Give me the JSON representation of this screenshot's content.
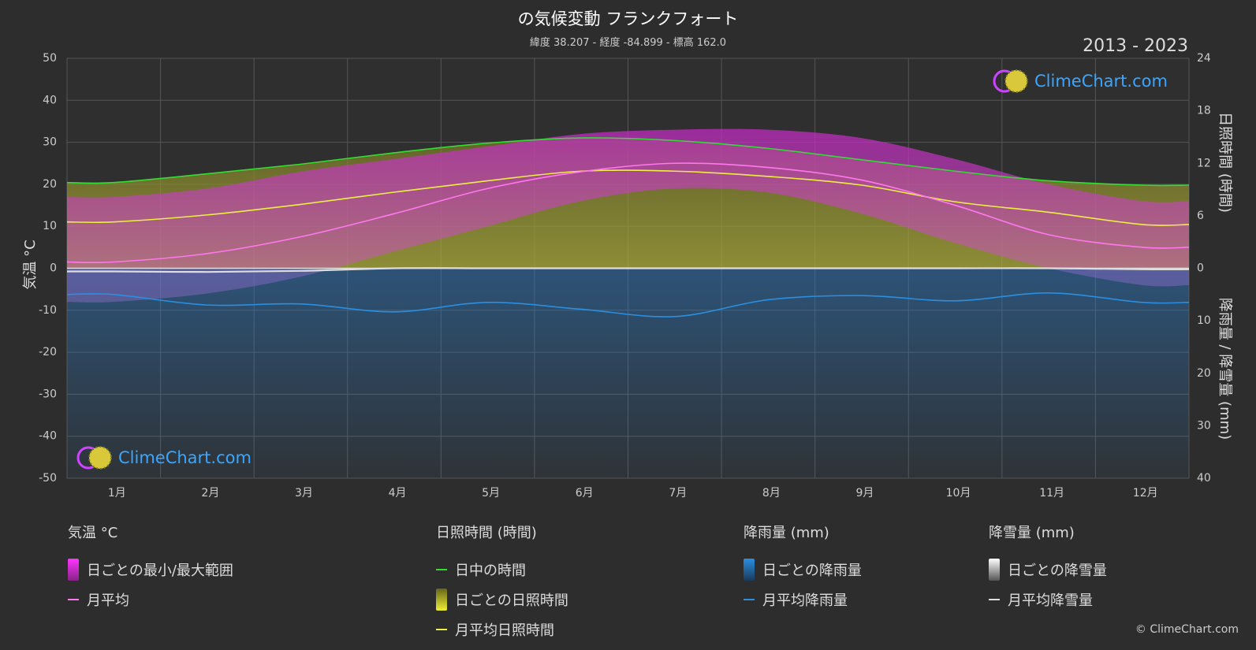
{
  "header": {
    "title": "の気候変動 フランクフォート",
    "subtitle": "緯度 38.207 - 経度 -84.899 - 標高 162.0",
    "years": "2013 - 2023"
  },
  "logo_text": "ClimeChart.com",
  "copyright": "© ClimeChart.com",
  "axes": {
    "left_label": "気温 °C",
    "right_top_label": "日照時間 (時間)",
    "right_bottom_label": "降雨量 / 降雪量 (mm)"
  },
  "legend": {
    "temp": {
      "title": "気温 °C",
      "range": "日ごとの最小/最大範囲",
      "avg": "月平均"
    },
    "sun": {
      "title": "日照時間 (時間)",
      "daylight": "日中の時間",
      "daily": "日ごとの日照時間",
      "avg": "月平均日照時間"
    },
    "rain": {
      "title": "降雨量 (mm)",
      "daily": "日ごとの降雨量",
      "avg": "月平均降雨量"
    },
    "snow": {
      "title": "降雪量 (mm)",
      "daily": "日ごとの降雪量",
      "avg": "月平均降雪量"
    }
  },
  "colors": {
    "background": "#2d2d2d",
    "daylight": "#33dd33",
    "sunshine_avg": "#eeee44",
    "temp_avg": "#ff77ee",
    "temp_range": "#dd33dd",
    "rain": "#2a8fe0",
    "snow": "#dddddd"
  },
  "chart_data": {
    "type": "line",
    "categories": [
      "1月",
      "2月",
      "3月",
      "4月",
      "5月",
      "6月",
      "7月",
      "8月",
      "9月",
      "10月",
      "11月",
      "12月"
    ],
    "y_left": {
      "ticks": [
        50,
        40,
        30,
        20,
        10,
        0,
        -10,
        -20,
        -30,
        -40,
        -50
      ],
      "range": [
        -50,
        50
      ]
    },
    "y_right_top": {
      "ticks": [
        24,
        18,
        12,
        6,
        0
      ],
      "range": [
        0,
        24
      ]
    },
    "y_right_bottom": {
      "ticks": [
        10,
        20,
        30,
        40
      ],
      "range": [
        0,
        40
      ]
    },
    "series": [
      {
        "name": "日中の時間",
        "unit": "hours",
        "values": [
          9.8,
          10.8,
          11.9,
          13.2,
          14.3,
          14.9,
          14.6,
          13.7,
          12.4,
          11.1,
          10.0,
          9.5
        ]
      },
      {
        "name": "月平均日照時間",
        "unit": "hours",
        "values": [
          5.3,
          6.1,
          7.3,
          8.7,
          10.0,
          11.1,
          11.1,
          10.5,
          9.5,
          7.6,
          6.4,
          5.0
        ]
      },
      {
        "name": "月平均",
        "unit": "°C",
        "values": [
          1.5,
          3.5,
          7.5,
          13.0,
          19.0,
          23.0,
          25.0,
          24.0,
          21.0,
          15.0,
          8.0,
          5.0
        ]
      },
      {
        "name": "月平均降雨量",
        "unit": "mm",
        "values": [
          5.0,
          7.0,
          6.8,
          8.3,
          6.5,
          7.8,
          9.2,
          6.0,
          5.2,
          6.2,
          4.7,
          6.5
        ]
      },
      {
        "name": "月平均降雪量",
        "unit": "mm",
        "values": [
          0.6,
          0.7,
          0.5,
          0.0,
          0.0,
          0.0,
          0.0,
          0.0,
          0.0,
          0.0,
          0.0,
          0.2
        ]
      }
    ],
    "temp_range_band": {
      "min": [
        -8,
        -6,
        -2,
        4,
        10,
        16,
        19,
        18,
        13,
        6,
        0,
        -4
      ],
      "max": [
        17,
        19,
        23,
        26,
        29,
        32,
        33,
        33,
        31,
        26,
        20,
        16
      ]
    }
  }
}
